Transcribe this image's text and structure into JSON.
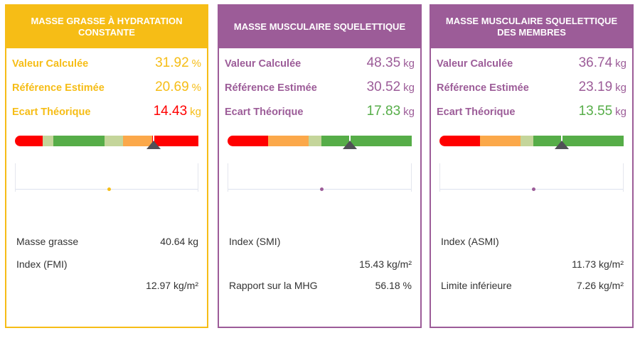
{
  "colors": {
    "yellow": "#f6bd16",
    "purple": "#9c5c98",
    "red": "#ff0000",
    "green": "#56ad48",
    "orange": "#fba84a",
    "lightgreen": "#c4d59a",
    "marker": "#505056"
  },
  "cards": [
    {
      "title": "MASSE GRASSE À HYDRATATION CONSTANTE",
      "theme": "yellow",
      "rows": [
        {
          "label": "Valeur Calculée",
          "value": "31.92",
          "unit": "%",
          "color": "yellow"
        },
        {
          "label": "Référence Estimée",
          "value": "20.69",
          "unit": "%",
          "color": "yellow"
        },
        {
          "label": "Ecart Théorique",
          "value": "14.43",
          "unit": "kg",
          "color": "red"
        }
      ],
      "gauge": {
        "segments": [
          {
            "color": "red",
            "fraction": 0.15
          },
          {
            "color": "lightgreen",
            "fraction": 0.06
          },
          {
            "color": "green",
            "fraction": 0.28
          },
          {
            "color": "lightgreen",
            "fraction": 0.1
          },
          {
            "color": "orange",
            "fraction": 0.16
          },
          {
            "color": "red",
            "fraction": 0.25
          }
        ],
        "marker": 0.75,
        "dot": 0.51
      },
      "info": [
        {
          "label": "Masse grasse",
          "value": "40.64 kg"
        },
        {
          "label": "Index (FMI)",
          "value": ""
        },
        {
          "label": "",
          "value": "12.97 kg/m²"
        }
      ]
    },
    {
      "title": "MASSE MUSCULAIRE SQUELETTIQUE",
      "theme": "purple",
      "rows": [
        {
          "label": "Valeur Calculée",
          "value": "48.35",
          "unit": "kg",
          "color": "purple"
        },
        {
          "label": "Référence Estimée",
          "value": "30.52",
          "unit": "kg",
          "color": "purple"
        },
        {
          "label": "Ecart Théorique",
          "value": "17.83",
          "unit": "kg",
          "color": "green"
        }
      ],
      "gauge": {
        "segments": [
          {
            "color": "red",
            "fraction": 0.22
          },
          {
            "color": "orange",
            "fraction": 0.22
          },
          {
            "color": "lightgreen",
            "fraction": 0.07
          },
          {
            "color": "green",
            "fraction": 0.49
          }
        ],
        "marker": 0.66,
        "dot": 0.51
      },
      "info": [
        {
          "label": "Index (SMI)",
          "value": ""
        },
        {
          "label": "",
          "value": "15.43 kg/m²"
        },
        {
          "label": "Rapport sur la MHG",
          "value": "56.18 %"
        }
      ]
    },
    {
      "title": "MASSE MUSCULAIRE SQUELETTIQUE DES MEMBRES",
      "theme": "purple",
      "rows": [
        {
          "label": "Valeur Calculée",
          "value": "36.74",
          "unit": "kg",
          "color": "purple"
        },
        {
          "label": "Référence Estimée",
          "value": "23.19",
          "unit": "kg",
          "color": "purple"
        },
        {
          "label": "Ecart Théorique",
          "value": "13.55",
          "unit": "kg",
          "color": "green"
        }
      ],
      "gauge": {
        "segments": [
          {
            "color": "red",
            "fraction": 0.22
          },
          {
            "color": "orange",
            "fraction": 0.22
          },
          {
            "color": "lightgreen",
            "fraction": 0.07
          },
          {
            "color": "green",
            "fraction": 0.49
          }
        ],
        "marker": 0.66,
        "dot": 0.51
      },
      "info": [
        {
          "label": "Index (ASMI)",
          "value": ""
        },
        {
          "label": "",
          "value": "11.73 kg/m²"
        },
        {
          "label": "Limite inférieure",
          "value": "7.26 kg/m²"
        }
      ]
    }
  ]
}
